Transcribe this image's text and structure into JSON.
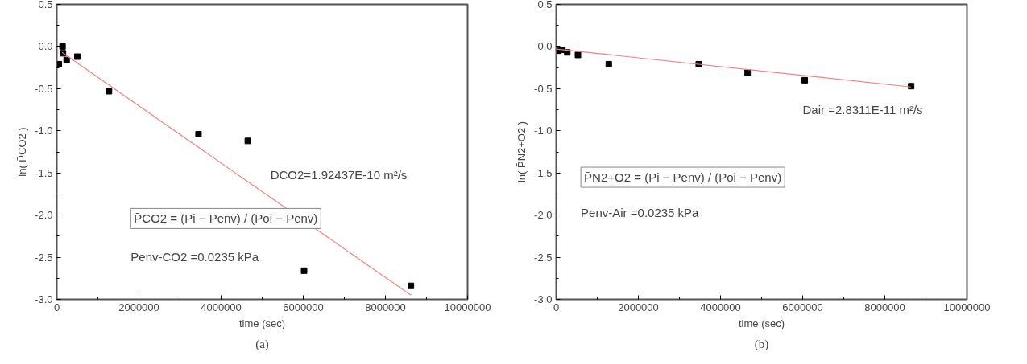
{
  "chart_data": [
    {
      "type": "scatter",
      "title": "(a)",
      "xlabel": "time (sec)",
      "ylabel": "ln( P̄CO2 )",
      "xlim": [
        0,
        10000000
      ],
      "xticks": [
        0,
        2000000,
        4000000,
        6000000,
        8000000,
        10000000
      ],
      "ylim": [
        -3.0,
        0.5
      ],
      "yticks": [
        {
          "value": 0.5,
          "label": "0.5"
        },
        {
          "value": 0,
          "label": "0.0"
        },
        {
          "value": -0.5,
          "label": "-0.5"
        },
        {
          "value": -1,
          "label": "-1.0"
        },
        {
          "value": -1.5,
          "label": "-1.5"
        },
        {
          "value": -2,
          "label": "-2.0"
        },
        {
          "value": -2.5,
          "label": "-2.5"
        },
        {
          "value": -3,
          "label": "-3.0"
        }
      ],
      "grid": false,
      "series": [
        {
          "marker": "square",
          "color": "#000000",
          "x": [
            50000,
            140000,
            150000,
            240000,
            500000,
            1270000,
            3450000,
            4650000,
            6020000,
            8620000
          ],
          "values": [
            -0.21,
            0.0,
            -0.08,
            -0.16,
            -0.12,
            -0.53,
            -1.04,
            -1.12,
            -2.66,
            -2.84
          ]
        },
        {
          "type": "line",
          "marker": "none",
          "color": "#f08080",
          "x": [
            130000,
            8620000
          ],
          "values": [
            -0.07,
            -2.95
          ]
        }
      ],
      "annotations": [
        "DCO2=1.92437E-10 m²/s",
        "P̄CO2 = (Pi − Penv) / (Poi − Penv)",
        "Penv-CO2 =0.0235 kPa"
      ]
    },
    {
      "type": "scatter",
      "title": "(b)",
      "xlabel": "time (sec)",
      "ylabel": "ln( P̄N2+O2 )",
      "xlim": [
        0,
        10000000
      ],
      "xticks": [
        0,
        2000000,
        4000000,
        6000000,
        8000000,
        10000000
      ],
      "ylim": [
        -3.0,
        0.5
      ],
      "yticks": [
        {
          "value": 0.5,
          "label": "0.5"
        },
        {
          "value": 0,
          "label": "0.0"
        },
        {
          "value": -0.5,
          "label": "-0.5"
        },
        {
          "value": -1,
          "label": "-1.0"
        },
        {
          "value": -1.5,
          "label": "-1.5"
        },
        {
          "value": -2,
          "label": "-2.0"
        },
        {
          "value": -2.5,
          "label": "-2.5"
        },
        {
          "value": -3,
          "label": "-3.0"
        }
      ],
      "grid": false,
      "series": [
        {
          "marker": "square",
          "color": "#000000",
          "x": [
            50000,
            150000,
            270000,
            530000,
            1280000,
            3470000,
            4660000,
            6050000,
            8640000
          ],
          "values": [
            -0.05,
            -0.04,
            -0.07,
            -0.1,
            -0.21,
            -0.21,
            -0.31,
            -0.4,
            -0.47
          ]
        },
        {
          "type": "line",
          "marker": "none",
          "color": "#f08080",
          "x": [
            0,
            8640000
          ],
          "values": [
            -0.03,
            -0.48
          ]
        }
      ],
      "annotations": [
        "Dair =2.8311E-11 m²/s",
        "P̄N2+O2 = (Pi − Penv) / (Poi − Penv)",
        "Penv-Air =0.0235 kPa"
      ]
    }
  ]
}
